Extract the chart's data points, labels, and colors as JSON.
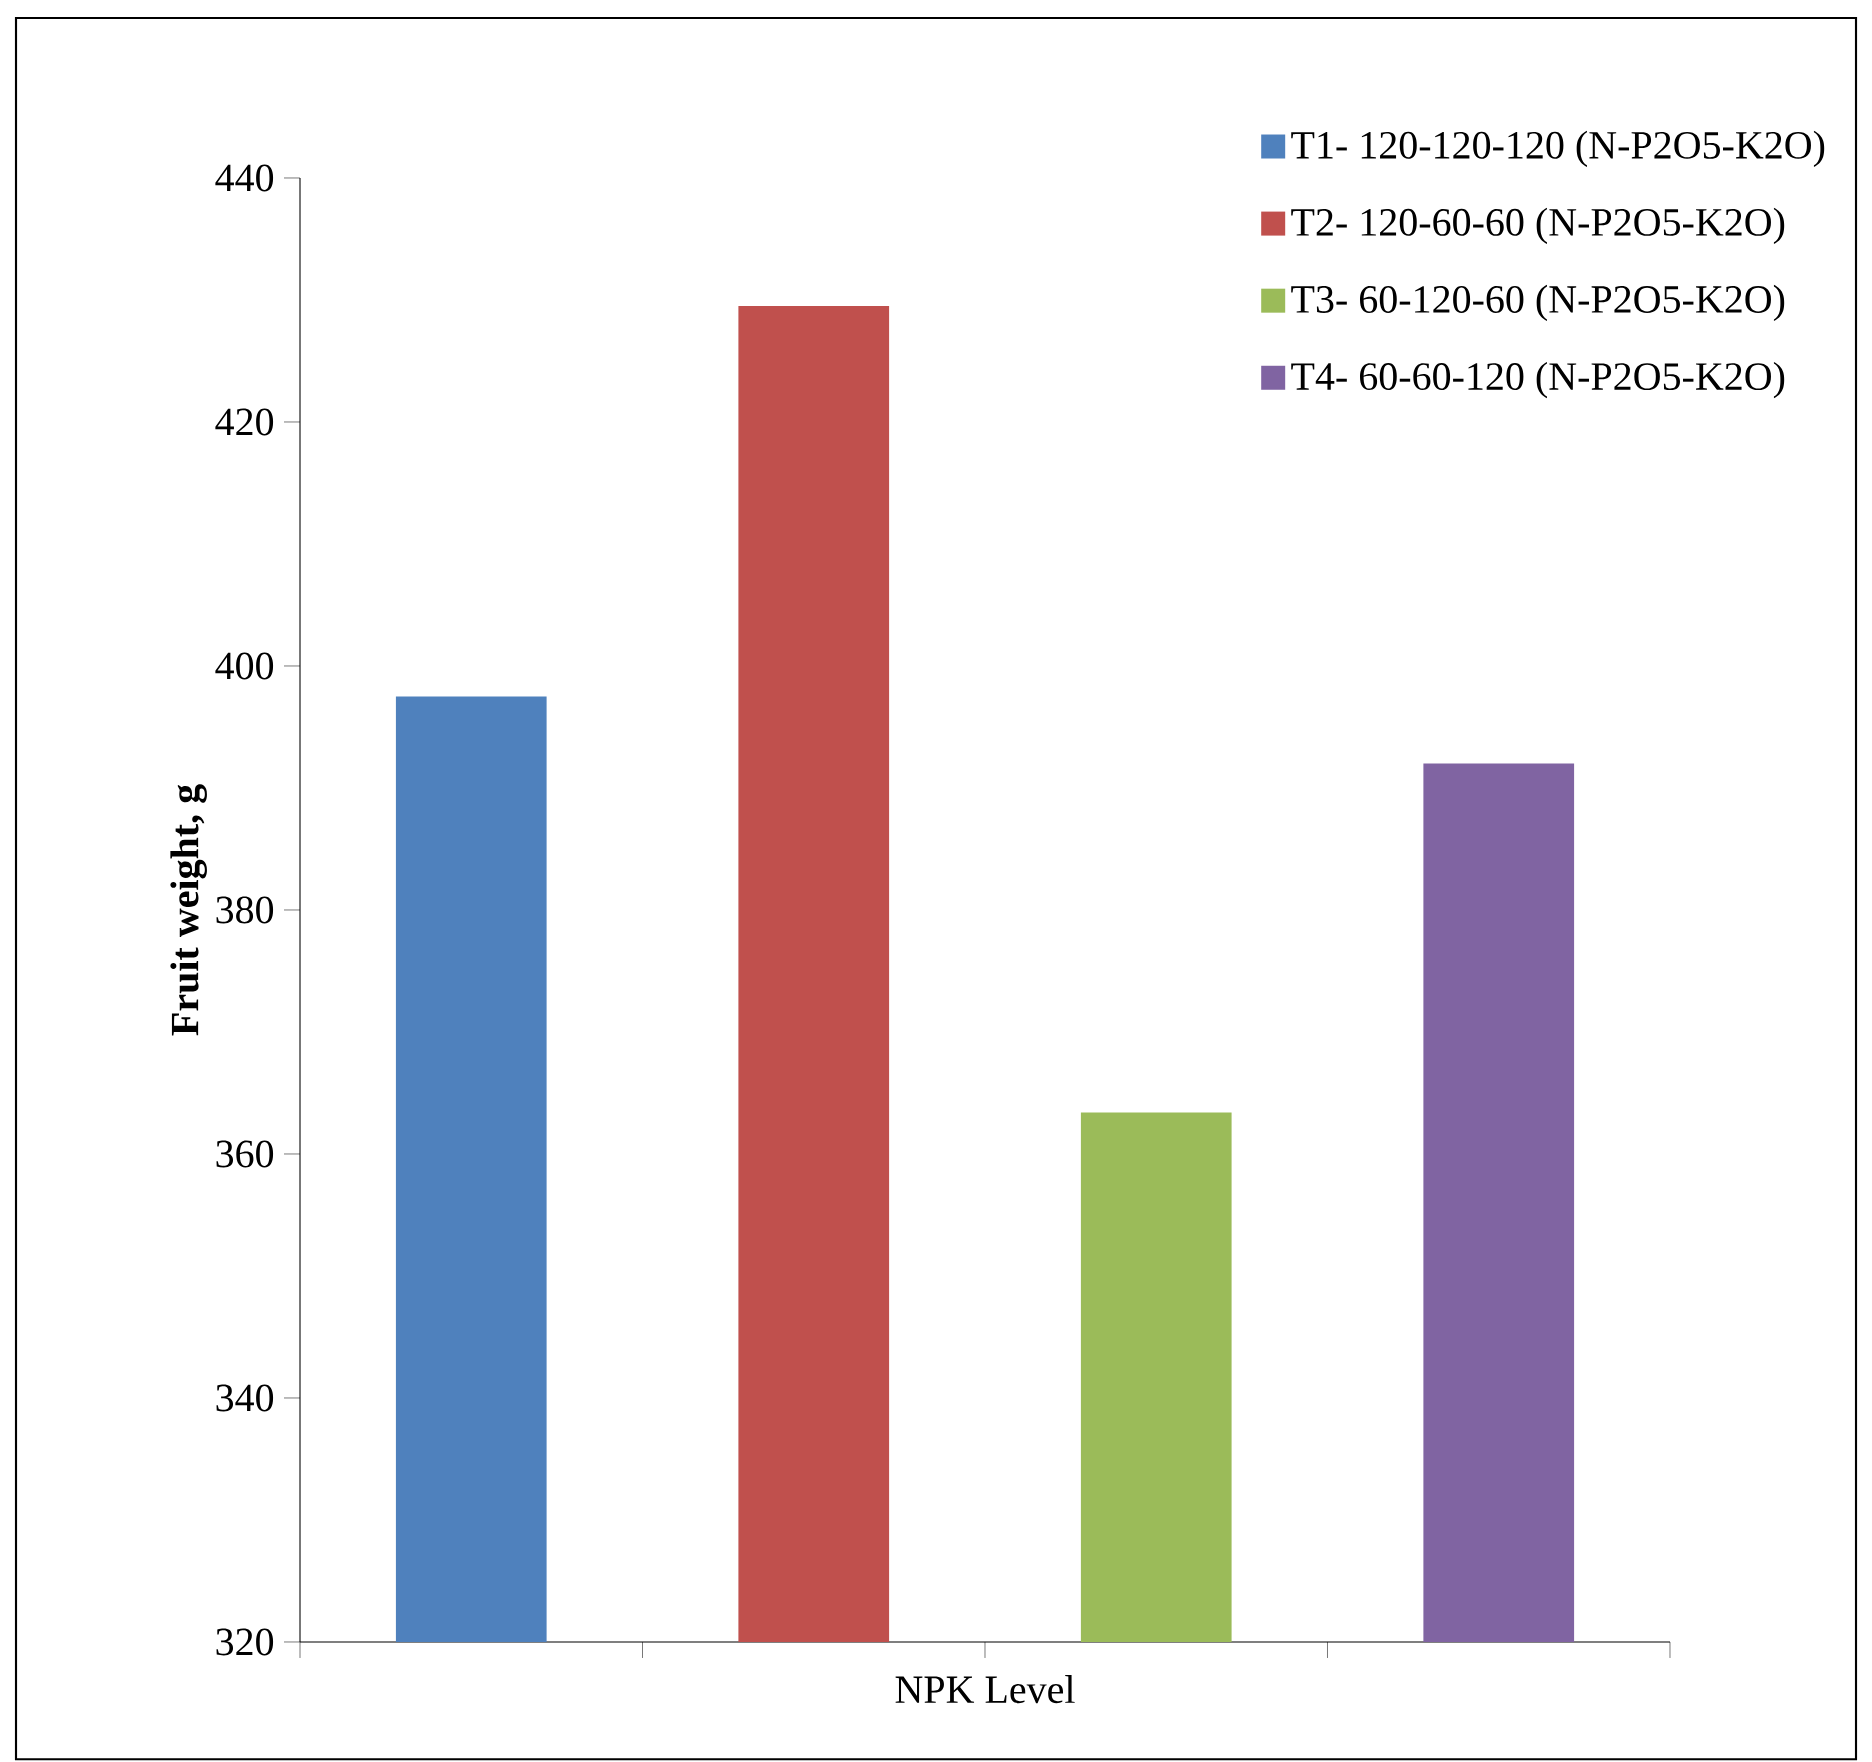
{
  "chart_data": {
    "type": "bar",
    "xlabel": "NPK Level",
    "ylabel": "Fruit weight, g",
    "categories": [
      null,
      null,
      null,
      null
    ],
    "series": [
      {
        "name": "T1- 120-120-120 (N-P2O5-K2O)",
        "color": "#4f81bd",
        "values": [
          397.5,
          null,
          null,
          null
        ]
      },
      {
        "name": "T2- 120-60-60 (N-P2O5-K2O)",
        "color": "#c0504d",
        "values": [
          null,
          429.5,
          null,
          null
        ]
      },
      {
        "name": "T3- 60-120-60 (N-P2O5-K2O)",
        "color": "#9bbb59",
        "values": [
          null,
          null,
          363.4,
          null
        ]
      },
      {
        "name": "T4- 60-60-120 (N-P2O5-K2O)",
        "color": "#8064a2",
        "values": [
          null,
          null,
          null,
          392
        ]
      }
    ],
    "ylim": [
      320,
      440
    ],
    "yticks": [
      320,
      340,
      360,
      380,
      400,
      420,
      440
    ],
    "legend": "top right"
  }
}
